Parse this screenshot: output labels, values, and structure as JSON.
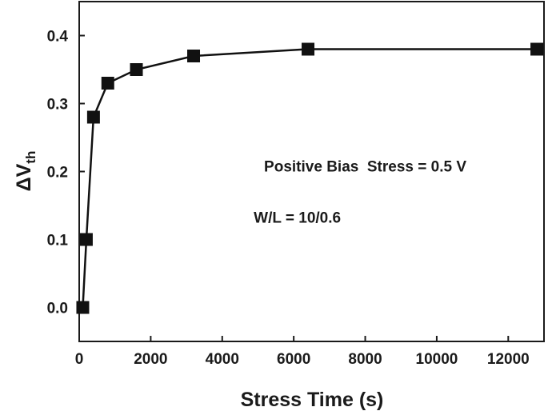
{
  "chart_data": {
    "type": "line",
    "title": "",
    "xlabel": "Stress Time (s)",
    "ylabel_main": "ΔV",
    "ylabel_sub": "th",
    "xlim": [
      0,
      13000
    ],
    "ylim": [
      -0.05,
      0.45
    ],
    "xticks": [
      0,
      2000,
      4000,
      6000,
      8000,
      10000,
      12000
    ],
    "xtick_labels": [
      "0",
      "2000",
      "4000",
      "6000",
      "8000",
      "10000",
      "12000"
    ],
    "yticks": [
      0.0,
      0.1,
      0.2,
      0.3,
      0.4
    ],
    "ytick_labels": [
      "0.0",
      "0.1",
      "0.2",
      "0.3",
      "0.4"
    ],
    "grid": false,
    "marker": "square",
    "colors": {
      "line": "#111111",
      "marker": "#111111"
    },
    "series": [
      {
        "x": [
          100,
          200,
          400,
          800,
          1600,
          3200,
          6400,
          12800
        ],
        "y": [
          0.0,
          0.1,
          0.28,
          0.33,
          0.35,
          0.37,
          0.38,
          0.38
        ]
      }
    ],
    "annotations": [
      {
        "text": "Positive Bias  Stress = 0.5 V",
        "at": [
          8000,
          0.2
        ]
      },
      {
        "text": "W/L = 10/0.6",
        "at": [
          6100,
          0.125
        ]
      }
    ]
  }
}
